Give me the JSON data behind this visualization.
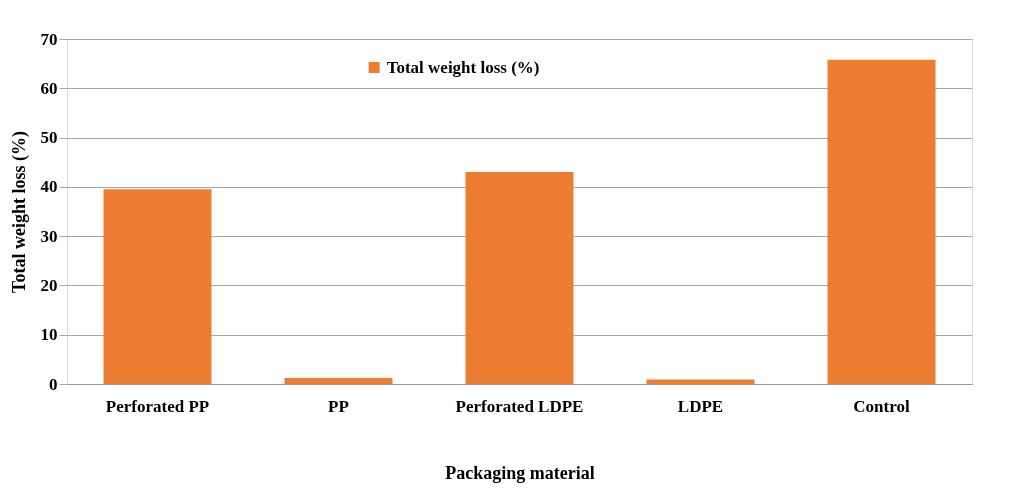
{
  "chart_data": {
    "type": "bar",
    "xlabel": "Packaging material",
    "ylabel": "Total weight loss (%)",
    "categories": [
      "Perforated PP",
      "PP",
      "Perforated LDPE",
      "LDPE",
      "Control"
    ],
    "series": [
      {
        "name": "Total weight loss (%)",
        "color": "#ed7d31",
        "values": [
          39.5,
          1.2,
          43.0,
          0.9,
          65.8
        ]
      }
    ],
    "ylim": [
      0,
      70
    ],
    "yticks": [
      0,
      10,
      20,
      30,
      40,
      50,
      60,
      70
    ],
    "grid": "y",
    "legend": "top"
  }
}
